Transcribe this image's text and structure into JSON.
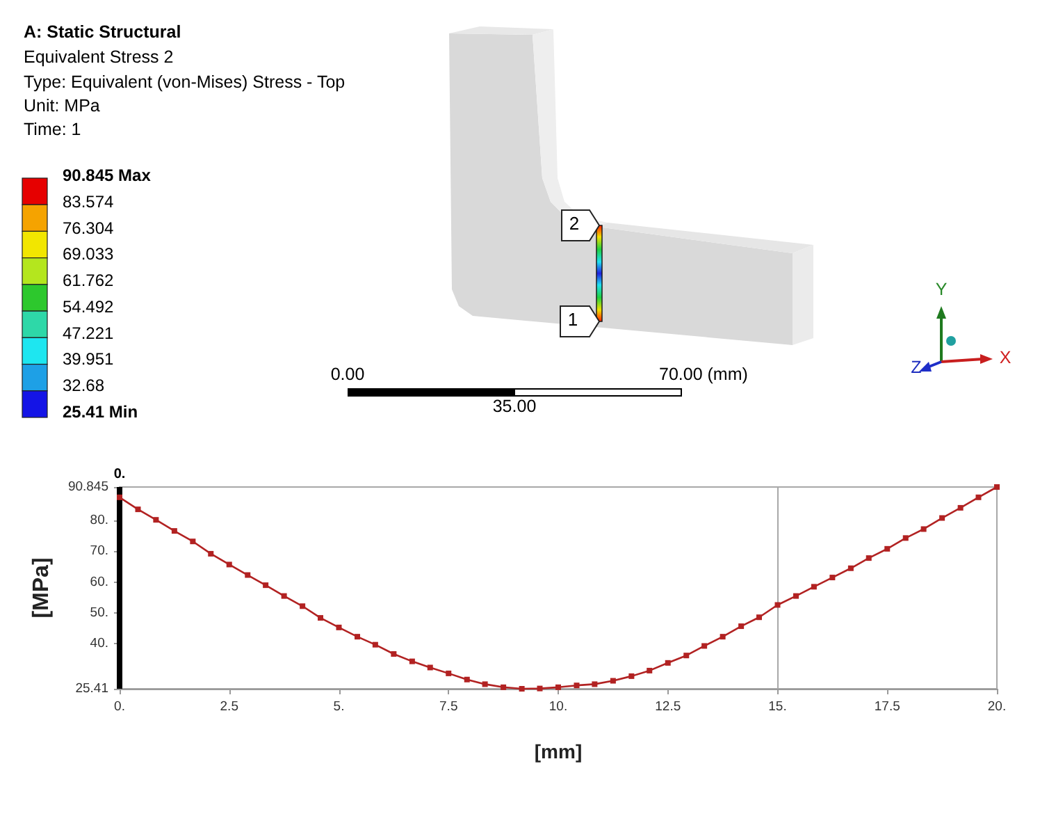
{
  "chart_data": {
    "type": "line",
    "title": "A: Static Structural",
    "subtitle": "Equivalent Stress 2",
    "annotations": [
      "Type: Equivalent (von-Mises) Stress - Top",
      "Unit: MPa",
      "Time: 1",
      "90.845 Max",
      "83.574",
      "76.304",
      "69.033",
      "61.762",
      "54.492",
      "47.221",
      "39.951",
      "32.68",
      "25.41 Min",
      "0.00",
      "35.00",
      "70.00 (mm)",
      "2",
      "1",
      "Y",
      "X",
      "Z"
    ],
    "xlabel": "[mm]",
    "ylabel": "[MPa]",
    "color": "#b22222",
    "marker": "square",
    "line_style": "solid",
    "grid": false,
    "x": [
      0,
      0.42,
      0.83,
      1.25,
      1.67,
      2.08,
      2.5,
      2.92,
      3.33,
      3.75,
      4.17,
      4.58,
      5,
      5.42,
      5.83,
      6.25,
      6.67,
      7.08,
      7.5,
      7.92,
      8.33,
      8.75,
      9.17,
      9.58,
      10,
      10.42,
      10.83,
      11.25,
      11.67,
      12.08,
      12.5,
      12.92,
      13.33,
      13.75,
      14.17,
      14.58,
      15,
      15.42,
      15.83,
      16.25,
      16.67,
      17.08,
      17.5,
      17.92,
      18.33,
      18.75,
      19.17,
      19.58,
      20
    ],
    "values": [
      87.5,
      83.6,
      80.2,
      76.6,
      73.2,
      69.2,
      65.7,
      62.3,
      59.0,
      55.5,
      52.2,
      48.4,
      45.3,
      42.3,
      39.7,
      36.7,
      34.3,
      32.3,
      30.4,
      28.4,
      26.9,
      25.9,
      25.41,
      25.5,
      25.9,
      26.5,
      26.9,
      28.0,
      29.5,
      31.3,
      33.8,
      36.2,
      39.3,
      42.3,
      45.7,
      48.6,
      52.6,
      55.5,
      58.5,
      61.5,
      64.5,
      67.8,
      70.8,
      74.3,
      77.2,
      80.8,
      84.1,
      87.5,
      90.845
    ],
    "xlim": [
      0,
      20
    ],
    "xticks": [
      {
        "value": 0,
        "label": "0."
      },
      2.5,
      {
        "value": 5,
        "label": "5."
      },
      7.5,
      {
        "value": 10,
        "label": "10."
      },
      12.5,
      {
        "value": 15,
        "label": "15."
      },
      17.5,
      {
        "value": 20,
        "label": "20."
      }
    ],
    "ylim": [
      25.41,
      90.845
    ],
    "yticks": [
      25.41,
      {
        "value": 40,
        "label": "40."
      },
      {
        "value": 50,
        "label": "50."
      },
      {
        "value": 60,
        "label": "60."
      },
      {
        "value": 70,
        "label": "70."
      },
      {
        "value": 80,
        "label": "80."
      },
      90.845
    ],
    "ref_lines": [
      {
        "axis": "x",
        "value": 0,
        "label": "0.",
        "color": "#000000"
      },
      {
        "axis": "x",
        "value": 15,
        "color": "#a8a8a8"
      }
    ]
  }
}
